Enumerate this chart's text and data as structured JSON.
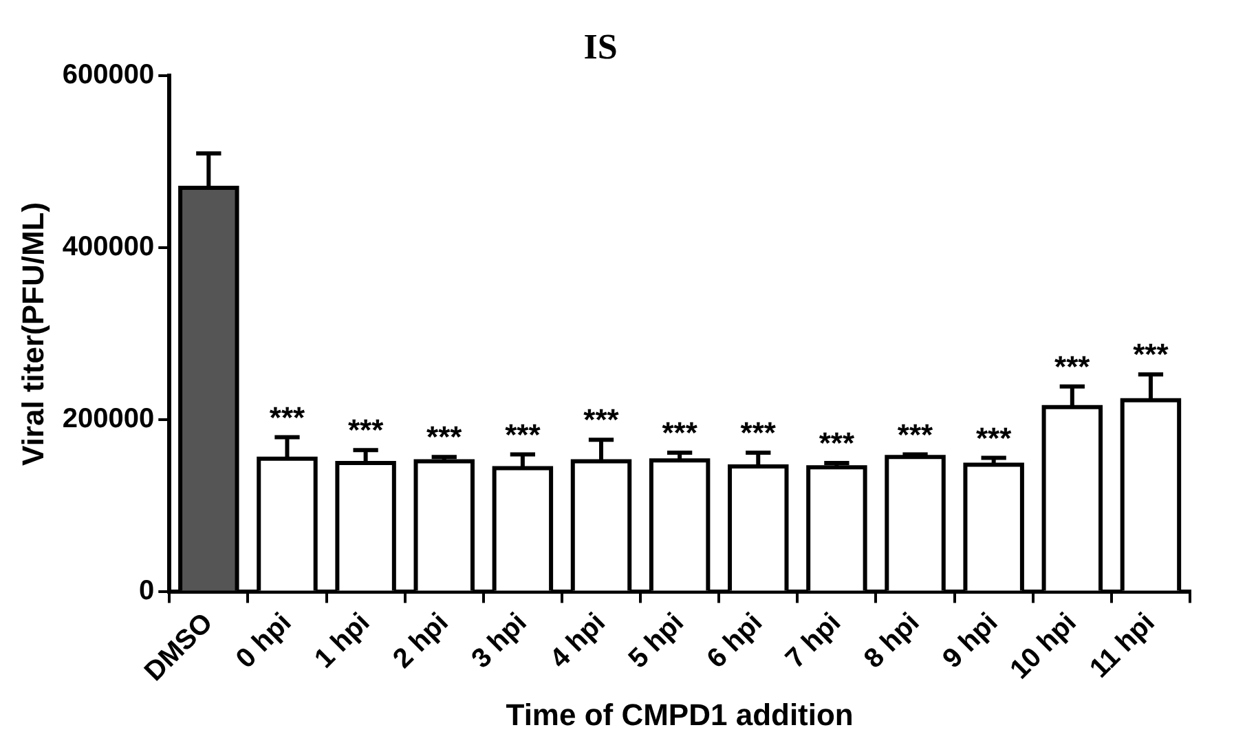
{
  "chart_data": {
    "type": "bar",
    "title": "IS",
    "xlabel": "Time of CMPD1 addition",
    "ylabel": "Viral titer(PFU/ML)",
    "categories": [
      "DMSO",
      "0 hpi",
      "1 hpi",
      "2 hpi",
      "3 hpi",
      "4 hpi",
      "5 hpi",
      "6 hpi",
      "7 hpi",
      "8 hpi",
      "9 hpi",
      "10 hpi",
      "11 hpi"
    ],
    "values": [
      470000,
      155000,
      150000,
      152000,
      144000,
      152000,
      153000,
      146000,
      145000,
      157000,
      148000,
      215000,
      223000
    ],
    "errors": [
      40000,
      25000,
      15000,
      5000,
      16000,
      25000,
      9000,
      16000,
      5000,
      3000,
      8000,
      24000,
      30000
    ],
    "colors": [
      "#555555",
      "#ffffff",
      "#ffffff",
      "#ffffff",
      "#ffffff",
      "#ffffff",
      "#ffffff",
      "#ffffff",
      "#ffffff",
      "#ffffff",
      "#ffffff",
      "#ffffff",
      "#ffffff"
    ],
    "ylim": [
      0,
      600000
    ],
    "yticks": [
      0,
      200000,
      400000,
      600000
    ],
    "grid": false,
    "legend": false,
    "annotations": [
      {
        "text": "***",
        "x": "0 hpi",
        "y": 180000
      },
      {
        "text": "***",
        "x": "1 hpi",
        "y": 165000
      },
      {
        "text": "***",
        "x": "2 hpi",
        "y": 157000
      },
      {
        "text": "***",
        "x": "3 hpi",
        "y": 160000
      },
      {
        "text": "***",
        "x": "4 hpi",
        "y": 177000
      },
      {
        "text": "***",
        "x": "5 hpi",
        "y": 162000
      },
      {
        "text": "***",
        "x": "6 hpi",
        "y": 162000
      },
      {
        "text": "***",
        "x": "7 hpi",
        "y": 150000
      },
      {
        "text": "***",
        "x": "8 hpi",
        "y": 160000
      },
      {
        "text": "***",
        "x": "9 hpi",
        "y": 156000
      },
      {
        "text": "***",
        "x": "10 hpi",
        "y": 239000
      },
      {
        "text": "***",
        "x": "11 hpi",
        "y": 253000
      }
    ]
  }
}
